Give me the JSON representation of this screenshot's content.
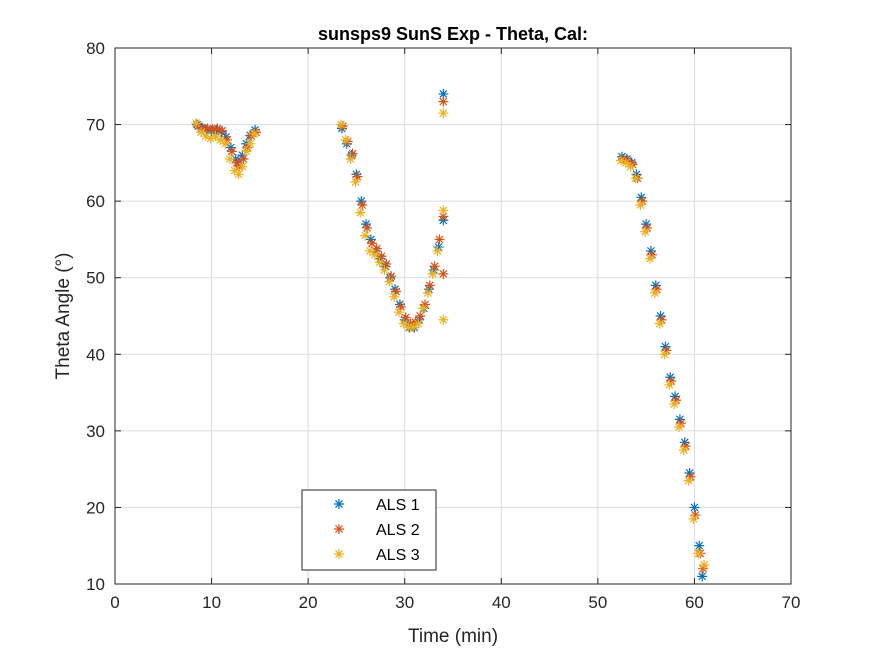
{
  "chart_data": {
    "type": "scatter",
    "title": "sunsps9 SunS Exp - Theta, Cal:",
    "xlabel": "Time (min)",
    "ylabel": "Theta Angle (°)",
    "xlim": [
      0,
      70
    ],
    "ylim": [
      10,
      80
    ],
    "xticks": [
      0,
      10,
      20,
      30,
      40,
      50,
      60,
      70
    ],
    "yticks": [
      10,
      20,
      30,
      40,
      50,
      60,
      70,
      80
    ],
    "xtick_labels": [
      "0",
      "10",
      "20",
      "30",
      "40",
      "50",
      "60",
      "70"
    ],
    "ytick_labels": [
      "10",
      "20",
      "30",
      "40",
      "50",
      "60",
      "70",
      "80"
    ],
    "grid": true,
    "legend_position": "bottom-center",
    "marker": "asterisk",
    "series": [
      {
        "name": "ALS 1",
        "color": "#0072BD",
        "points": [
          [
            8.5,
            70.0
          ],
          [
            9.0,
            69.6
          ],
          [
            9.5,
            69.3
          ],
          [
            10.0,
            69.2
          ],
          [
            10.5,
            69.3
          ],
          [
            11.0,
            69.1
          ],
          [
            11.5,
            68.4
          ],
          [
            12.0,
            67.0
          ],
          [
            12.5,
            65.5
          ],
          [
            12.8,
            65.0
          ],
          [
            13.2,
            66.0
          ],
          [
            13.6,
            67.5
          ],
          [
            14.0,
            68.6
          ],
          [
            14.5,
            69.3
          ],
          [
            23.5,
            69.5
          ],
          [
            24.0,
            67.5
          ],
          [
            24.5,
            66.0
          ],
          [
            25.0,
            63.5
          ],
          [
            25.5,
            60.0
          ],
          [
            26.0,
            57.0
          ],
          [
            26.5,
            55.0
          ],
          [
            27.0,
            53.5
          ],
          [
            27.5,
            52.5
          ],
          [
            28.0,
            51.5
          ],
          [
            28.5,
            50.0
          ],
          [
            29.0,
            48.5
          ],
          [
            29.5,
            46.5
          ],
          [
            30.0,
            44.5
          ],
          [
            30.5,
            43.5
          ],
          [
            31.0,
            43.5
          ],
          [
            31.5,
            44.5
          ],
          [
            32.0,
            46.0
          ],
          [
            32.5,
            48.5
          ],
          [
            33.0,
            51.0
          ],
          [
            33.5,
            54.0
          ],
          [
            34.0,
            57.5
          ],
          [
            34.0,
            74.0
          ],
          [
            52.5,
            65.8
          ],
          [
            53.0,
            65.5
          ],
          [
            53.5,
            65.0
          ],
          [
            54.0,
            63.5
          ],
          [
            54.5,
            60.5
          ],
          [
            55.0,
            57.0
          ],
          [
            55.5,
            53.5
          ],
          [
            56.0,
            49.0
          ],
          [
            56.5,
            45.0
          ],
          [
            57.0,
            41.0
          ],
          [
            57.5,
            37.0
          ],
          [
            58.0,
            34.5
          ],
          [
            58.5,
            31.5
          ],
          [
            59.0,
            28.5
          ],
          [
            59.5,
            24.5
          ],
          [
            60.0,
            20.0
          ],
          [
            60.5,
            15.0
          ],
          [
            60.8,
            11.0
          ]
        ]
      },
      {
        "name": "ALS 2",
        "color": "#D95319",
        "points": [
          [
            8.6,
            69.8
          ],
          [
            9.1,
            69.5
          ],
          [
            9.6,
            69.5
          ],
          [
            10.1,
            69.4
          ],
          [
            10.6,
            69.5
          ],
          [
            11.1,
            69.2
          ],
          [
            11.6,
            68.0
          ],
          [
            12.1,
            66.5
          ],
          [
            12.6,
            65.0
          ],
          [
            12.9,
            64.5
          ],
          [
            13.3,
            65.5
          ],
          [
            13.7,
            67.0
          ],
          [
            14.1,
            68.5
          ],
          [
            14.6,
            69.0
          ],
          [
            23.6,
            69.8
          ],
          [
            24.1,
            67.8
          ],
          [
            24.6,
            66.2
          ],
          [
            25.1,
            63.2
          ],
          [
            25.6,
            59.5
          ],
          [
            26.1,
            56.5
          ],
          [
            26.6,
            54.5
          ],
          [
            27.1,
            53.8
          ],
          [
            27.6,
            52.8
          ],
          [
            28.1,
            51.8
          ],
          [
            28.6,
            50.2
          ],
          [
            29.1,
            48.2
          ],
          [
            29.6,
            46.2
          ],
          [
            30.1,
            44.8
          ],
          [
            30.6,
            44.0
          ],
          [
            31.1,
            44.2
          ],
          [
            31.6,
            45.0
          ],
          [
            32.1,
            46.5
          ],
          [
            32.6,
            49.0
          ],
          [
            33.1,
            51.5
          ],
          [
            33.6,
            55.0
          ],
          [
            34.0,
            58.0
          ],
          [
            34.0,
            50.5
          ],
          [
            34.0,
            73.0
          ],
          [
            52.6,
            65.5
          ],
          [
            53.1,
            65.3
          ],
          [
            53.6,
            64.8
          ],
          [
            54.1,
            63.0
          ],
          [
            54.6,
            60.0
          ],
          [
            55.1,
            56.5
          ],
          [
            55.6,
            53.0
          ],
          [
            56.1,
            48.5
          ],
          [
            56.6,
            44.5
          ],
          [
            57.1,
            40.5
          ],
          [
            57.6,
            36.5
          ],
          [
            58.1,
            34.0
          ],
          [
            58.6,
            31.0
          ],
          [
            59.1,
            28.0
          ],
          [
            59.6,
            24.0
          ],
          [
            60.1,
            19.0
          ],
          [
            60.6,
            14.0
          ],
          [
            60.9,
            12.0
          ]
        ]
      },
      {
        "name": "ALS 3",
        "color": "#EDB120",
        "points": [
          [
            8.4,
            70.2
          ],
          [
            8.9,
            69.0
          ],
          [
            9.4,
            68.5
          ],
          [
            9.9,
            68.2
          ],
          [
            10.4,
            68.5
          ],
          [
            10.9,
            68.0
          ],
          [
            11.4,
            67.5
          ],
          [
            11.9,
            65.5
          ],
          [
            12.4,
            64.0
          ],
          [
            12.8,
            63.5
          ],
          [
            13.2,
            64.5
          ],
          [
            13.6,
            66.5
          ],
          [
            14.0,
            67.5
          ],
          [
            14.4,
            68.8
          ],
          [
            23.4,
            70.0
          ],
          [
            23.9,
            68.0
          ],
          [
            24.4,
            65.5
          ],
          [
            24.9,
            62.5
          ],
          [
            25.4,
            58.5
          ],
          [
            25.9,
            55.5
          ],
          [
            26.4,
            53.5
          ],
          [
            26.9,
            53.0
          ],
          [
            27.4,
            52.0
          ],
          [
            27.9,
            51.0
          ],
          [
            28.4,
            49.5
          ],
          [
            28.9,
            47.5
          ],
          [
            29.4,
            45.5
          ],
          [
            29.9,
            44.0
          ],
          [
            30.4,
            43.5
          ],
          [
            30.9,
            43.5
          ],
          [
            31.4,
            44.0
          ],
          [
            31.9,
            46.0
          ],
          [
            32.4,
            48.0
          ],
          [
            32.9,
            50.5
          ],
          [
            33.4,
            53.5
          ],
          [
            34.0,
            58.8
          ],
          [
            34.0,
            44.5
          ],
          [
            34.0,
            71.5
          ],
          [
            52.4,
            65.3
          ],
          [
            52.9,
            65.0
          ],
          [
            53.4,
            64.5
          ],
          [
            53.9,
            63.0
          ],
          [
            54.4,
            59.5
          ],
          [
            54.9,
            56.0
          ],
          [
            55.4,
            52.5
          ],
          [
            55.9,
            48.0
          ],
          [
            56.4,
            44.0
          ],
          [
            56.9,
            40.0
          ],
          [
            57.4,
            36.0
          ],
          [
            57.9,
            33.5
          ],
          [
            58.4,
            30.5
          ],
          [
            58.9,
            27.5
          ],
          [
            59.4,
            23.5
          ],
          [
            59.9,
            18.5
          ],
          [
            60.4,
            14.0
          ],
          [
            61.0,
            12.5
          ]
        ]
      }
    ]
  }
}
